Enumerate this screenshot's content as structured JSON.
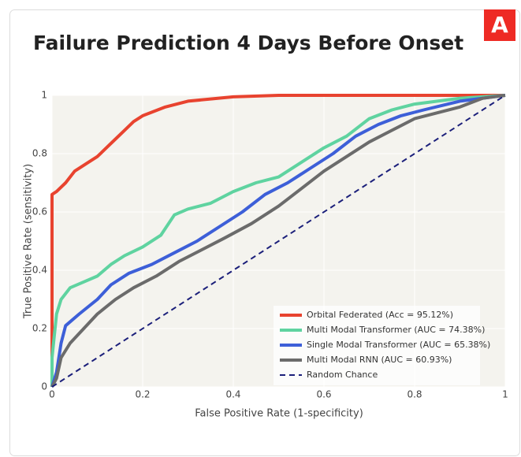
{
  "chart_data": {
    "type": "line",
    "logo": "A",
    "title": "Failure Prediction 4 Days Before Onset",
    "x_label": "False Positive Rate (1-specificity)",
    "y_label": "True Positive Rate (sensitivity)",
    "xlim": [
      0,
      1
    ],
    "ylim": [
      0,
      1
    ],
    "xticks": [
      0,
      0.2,
      0.4,
      0.6,
      0.8,
      1
    ],
    "yticks": [
      0,
      0.2,
      0.4,
      0.6,
      0.8,
      1
    ],
    "grid": true,
    "legend": "lower right",
    "series": [
      {
        "name": "Orbital Federated (Acc = 95.12%)",
        "color": "#e8432f",
        "x": [
          0,
          0,
          0.01,
          0.03,
          0.05,
          0.08,
          0.1,
          0.12,
          0.14,
          0.16,
          0.18,
          0.2,
          0.25,
          0.3,
          0.4,
          0.5,
          1
        ],
        "values": [
          0,
          0.66,
          0.67,
          0.7,
          0.74,
          0.77,
          0.79,
          0.82,
          0.85,
          0.88,
          0.91,
          0.93,
          0.96,
          0.98,
          0.995,
          1,
          1
        ]
      },
      {
        "name": "Multi Modal Transformer (AUC = 74.38%)",
        "color": "#5fd3a0",
        "x": [
          0,
          0,
          0.01,
          0.02,
          0.04,
          0.07,
          0.1,
          0.13,
          0.16,
          0.2,
          0.24,
          0.27,
          0.3,
          0.35,
          0.4,
          0.45,
          0.5,
          0.55,
          0.6,
          0.65,
          0.7,
          0.75,
          0.8,
          0.9,
          1
        ],
        "values": [
          0,
          0.1,
          0.25,
          0.3,
          0.34,
          0.36,
          0.38,
          0.42,
          0.45,
          0.48,
          0.52,
          0.59,
          0.61,
          0.63,
          0.67,
          0.7,
          0.72,
          0.77,
          0.82,
          0.86,
          0.92,
          0.95,
          0.97,
          0.99,
          1
        ]
      },
      {
        "name": "Single Modal Transformer (AUC = 65.38%)",
        "color": "#3d5fd8",
        "x": [
          0,
          0.01,
          0.02,
          0.03,
          0.06,
          0.1,
          0.13,
          0.17,
          0.22,
          0.27,
          0.32,
          0.37,
          0.42,
          0.47,
          0.52,
          0.57,
          0.62,
          0.67,
          0.72,
          0.77,
          0.82,
          0.9,
          1
        ],
        "values": [
          0,
          0.05,
          0.15,
          0.21,
          0.25,
          0.3,
          0.35,
          0.39,
          0.42,
          0.46,
          0.5,
          0.55,
          0.6,
          0.66,
          0.7,
          0.75,
          0.8,
          0.86,
          0.9,
          0.93,
          0.95,
          0.98,
          1
        ]
      },
      {
        "name": "Multi Modal RNN (AUC = 60.93%)",
        "color": "#6b6b6b",
        "x": [
          0,
          0.01,
          0.02,
          0.04,
          0.07,
          0.1,
          0.14,
          0.18,
          0.23,
          0.28,
          0.33,
          0.38,
          0.44,
          0.5,
          0.55,
          0.6,
          0.65,
          0.7,
          0.75,
          0.8,
          0.85,
          0.9,
          0.95,
          1
        ],
        "values": [
          0,
          0.03,
          0.1,
          0.15,
          0.2,
          0.25,
          0.3,
          0.34,
          0.38,
          0.43,
          0.47,
          0.51,
          0.56,
          0.62,
          0.68,
          0.74,
          0.79,
          0.84,
          0.88,
          0.92,
          0.94,
          0.96,
          0.99,
          1
        ]
      },
      {
        "name": "Random Chance",
        "color": "#1b1f7a",
        "dash": "dashed",
        "x": [
          0,
          1
        ],
        "values": [
          0,
          1
        ]
      }
    ]
  }
}
